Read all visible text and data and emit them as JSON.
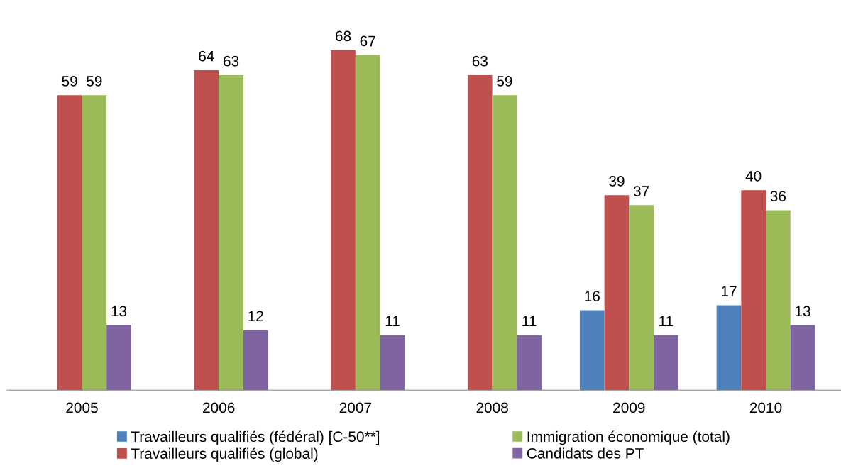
{
  "chart_data": {
    "type": "bar",
    "categories": [
      "2005",
      "2006",
      "2007",
      "2008",
      "2009",
      "2010"
    ],
    "series": [
      {
        "name": "Travailleurs qualifiés (fédéral) [C-50**]",
        "color": "#4f81bd",
        "values": [
          null,
          null,
          null,
          null,
          16,
          17
        ]
      },
      {
        "name": "Travailleurs qualifiés (global)",
        "color": "#c0504d",
        "values": [
          59,
          64,
          68,
          63,
          39,
          40
        ]
      },
      {
        "name": "Immigration économique (total)",
        "color": "#9bbb59",
        "values": [
          59,
          63,
          67,
          59,
          37,
          36
        ]
      },
      {
        "name": "Candidats des PT",
        "color": "#8064a2",
        "values": [
          13,
          12,
          11,
          11,
          11,
          13
        ]
      }
    ],
    "data_labels": true,
    "tick_labels": "x",
    "grid": false,
    "legend": "bottom"
  }
}
